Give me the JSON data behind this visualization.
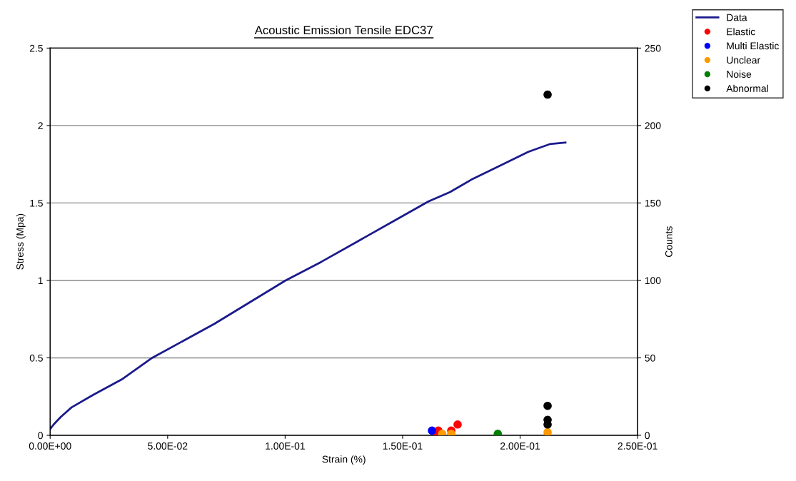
{
  "chart_data": {
    "type": "line",
    "title": "Acoustic Emission Tensile EDC37",
    "xlabel": "Strain (%)",
    "ylabel": "Stress (Mpa)",
    "y2label": "Counts",
    "xlim": [
      0,
      0.25
    ],
    "xticks": [
      {
        "value": 0,
        "label": "0.00E+00"
      },
      {
        "value": 0.05,
        "label": "5.00E-02"
      },
      {
        "value": 0.1,
        "label": "1.00E-01"
      },
      {
        "value": 0.15,
        "label": "1.50E-01"
      },
      {
        "value": 0.2,
        "label": "2.00E-01"
      },
      {
        "value": 0.25,
        "label": "2.50E-01"
      }
    ],
    "ylim": [
      0,
      2.5
    ],
    "yticks": [
      0,
      0.5,
      1,
      1.5,
      2,
      2.5
    ],
    "y2lim": [
      0,
      250
    ],
    "y2ticks": [
      0,
      50,
      100,
      150,
      200,
      250
    ],
    "grid": "y",
    "legend": "top right",
    "series": [
      {
        "name": "Data",
        "color": "#1a1a8c",
        "marker": "none",
        "x": [
          0,
          0.0015,
          0.0046,
          0.0091,
          0.0182,
          0.0304,
          0.0434,
          0.0699,
          0.1002,
          0.1154,
          0.1306,
          0.1458,
          0.161,
          0.1701,
          0.1792,
          0.1914,
          0.2035,
          0.2126,
          0.2193
        ],
        "values": [
          0.04,
          0.07,
          0.12,
          0.18,
          0.26,
          0.36,
          0.5,
          0.72,
          1.0,
          1.12,
          1.25,
          1.38,
          1.51,
          1.57,
          1.65,
          1.74,
          1.83,
          1.88,
          1.89
        ]
      },
      {
        "name": "Elastic",
        "type": "scatter",
        "axis": "y2",
        "color": "#ff0000",
        "marker": "circle",
        "x": [
          0.1652,
          0.1649,
          0.1707,
          0.1734
        ],
        "values": [
          3,
          1,
          3,
          7
        ]
      },
      {
        "name": "Multi Elastic",
        "type": "scatter",
        "axis": "y2",
        "color": "#0000ff",
        "marker": "circle",
        "x": [
          0.1625
        ],
        "values": [
          3
        ]
      },
      {
        "name": "Unclear",
        "type": "scatter",
        "axis": "y2",
        "color": "#ff9900",
        "marker": "circle",
        "x": [
          0.1668,
          0.1707,
          0.2117
        ],
        "values": [
          1,
          1,
          2
        ]
      },
      {
        "name": "Noise",
        "type": "scatter",
        "axis": "y2",
        "color": "#008000",
        "marker": "circle",
        "x": [
          0.1905
        ],
        "values": [
          1
        ]
      },
      {
        "name": "Abnormal",
        "type": "scatter",
        "axis": "y2",
        "color": "#000000",
        "marker": "circle",
        "x": [
          0.2117,
          0.2117,
          0.2117,
          0.2117
        ],
        "values": [
          220,
          19,
          10,
          7
        ]
      }
    ]
  }
}
